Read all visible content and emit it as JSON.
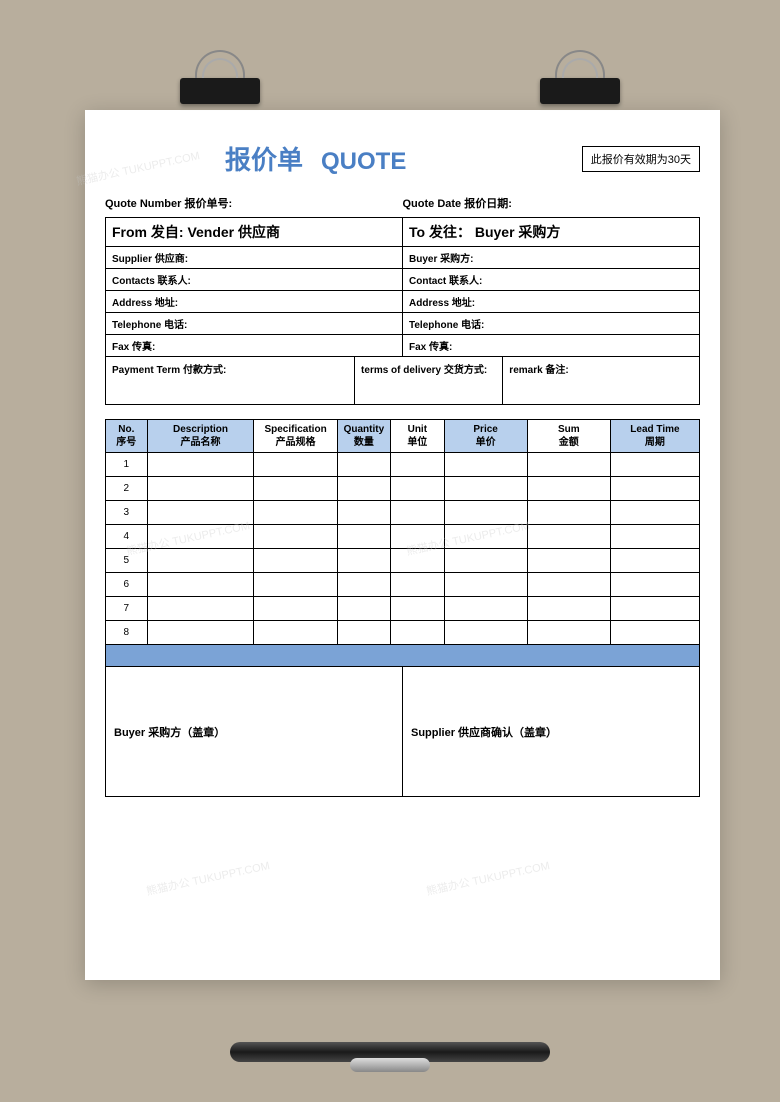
{
  "title_cn": "报价单",
  "title_en": "QUOTE",
  "validity": "此报价有效期为30天",
  "meta": {
    "quote_number_label": "Quote Number 报价单号:",
    "quote_date_label": "Quote Date  报价日期:"
  },
  "from": {
    "header": "From 发自:  Vender 供应商",
    "supplier": "Supplier 供应商:",
    "contacts": "Contacts 联系人:",
    "address": "Address 地址:",
    "telephone": "Telephone 电话:",
    "fax": "Fax 传真:"
  },
  "to": {
    "header": "To 发往： Buyer 采购方",
    "buyer": "Buyer 采购方:",
    "contact": "Contact 联系人:",
    "address": "Address 地址:",
    "telephone": "Telephone 电话:",
    "fax": "Fax 传真:"
  },
  "terms": {
    "payment": "Payment Term 付款方式:",
    "delivery": "terms of delivery 交货方式:",
    "remark": "remark 备注:"
  },
  "columns": {
    "no": "No.\n序号",
    "description": "Description\n产品名称",
    "specification": "Specification\n产品规格",
    "quantity": "Quantity\n数量",
    "unit": "Unit\n单位",
    "price": "Price\n单价",
    "sum": "Sum\n金额",
    "leadtime": "Lead Time\n周期"
  },
  "rows": [
    "1",
    "2",
    "3",
    "4",
    "5",
    "6",
    "7",
    "8"
  ],
  "signature": {
    "buyer": "Buyer 采购方（盖章）",
    "supplier": "Supplier 供应商确认（盖章）"
  },
  "colors": {
    "background": "#b8ae9d",
    "paper": "#ffffff",
    "title_color": "#4a7fc4",
    "header_blue": "#b8d0ed",
    "bar_blue": "#7ba3d6",
    "border": "#000000"
  },
  "watermark_text": "熊猫办公 TUKUPPT.COM"
}
